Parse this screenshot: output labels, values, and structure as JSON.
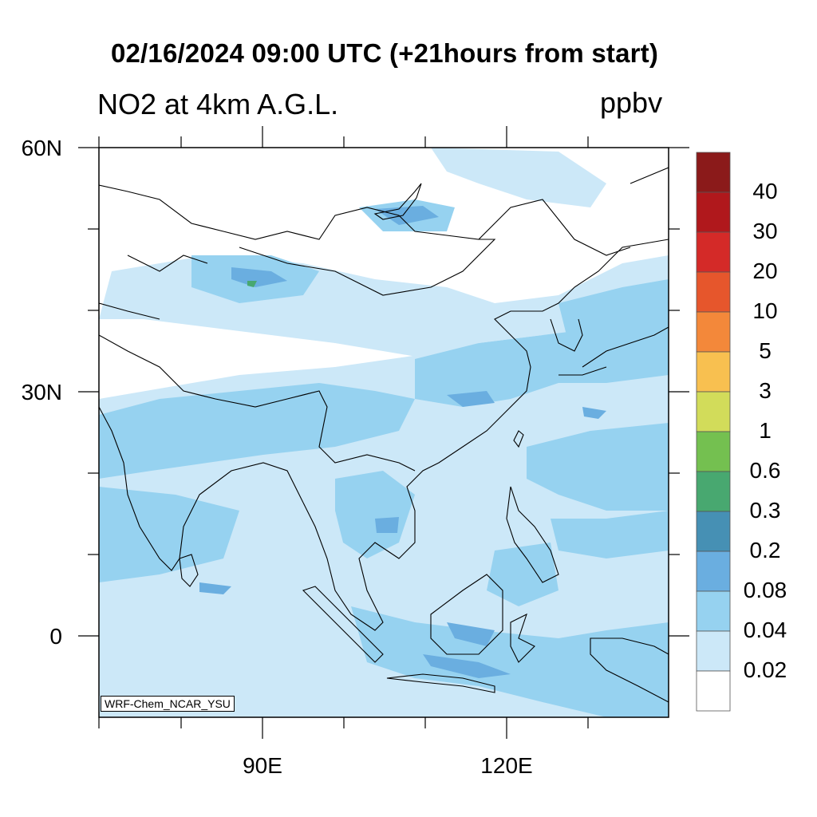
{
  "title": "02/16/2024 09:00 UTC (+21hours from start)",
  "subtitle": "NO2 at 4km A.G.L.",
  "units": "ppbv",
  "credit": "WRF-Chem_NCAR_YSU",
  "lat_labels": [
    "60N",
    "30N",
    "0"
  ],
  "lon_labels": [
    "90E",
    "120E"
  ],
  "colorbar": {
    "labels": [
      "40",
      "30",
      "20",
      "10",
      "5",
      "3",
      "1",
      "0.6",
      "0.3",
      "0.2",
      "0.08",
      "0.04",
      "0.02"
    ],
    "colors": [
      "#8b1a1a",
      "#b0181c",
      "#d42a28",
      "#e6562c",
      "#f3883a",
      "#f8c050",
      "#d2dc5a",
      "#74c050",
      "#48a870",
      "#4690b4",
      "#6aaee0",
      "#96d2f0",
      "#cce8f8",
      "#ffffff"
    ]
  },
  "colors": {
    "land": "#ffffff",
    "low": "#cce8f8",
    "mid": "#96d2f0",
    "high": "#6aaee0",
    "coast": "#000000"
  }
}
